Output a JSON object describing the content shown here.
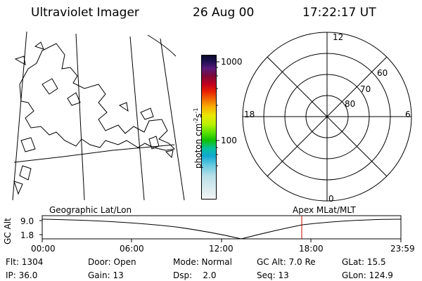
{
  "header": {
    "instrument": "Ultraviolet Imager",
    "date": "26 Aug 00",
    "time": "17:22:17 UT"
  },
  "colorbar": {
    "ticks": [
      "1000",
      "100"
    ],
    "unit_label": "photon cm",
    "unit_exp1": "-2",
    "unit_mid": "s",
    "unit_exp2": "-1"
  },
  "polar_plot": {
    "mlt_labels": {
      "top": "12",
      "left": "18",
      "right": "6",
      "bottom": "0"
    },
    "lat_labels": [
      "60",
      "70",
      "80"
    ]
  },
  "timeline": {
    "left_label": "Geographic Lat/Lon",
    "right_label": "Apex MLat/MLT",
    "axis_title": "GC Alt",
    "y_ticks": [
      "9.0",
      "1.8"
    ],
    "x_ticks": [
      "00:00",
      "06:00",
      "12:00",
      "18:00",
      "23:59"
    ],
    "marker_color": "#cc0000"
  },
  "info": {
    "flt": "Flt: 1304",
    "door": "Door: Open",
    "mode": "Mode: Normal",
    "gc_alt": "GC Alt: 7.0 Re",
    "glat": "GLat:  15.5",
    "ip": "IP: 36.0",
    "gain": "Gain: 13",
    "dsp": "Dsp:    2.0",
    "seq": "Seq: 13",
    "glon": "GLon: 124.9"
  }
}
